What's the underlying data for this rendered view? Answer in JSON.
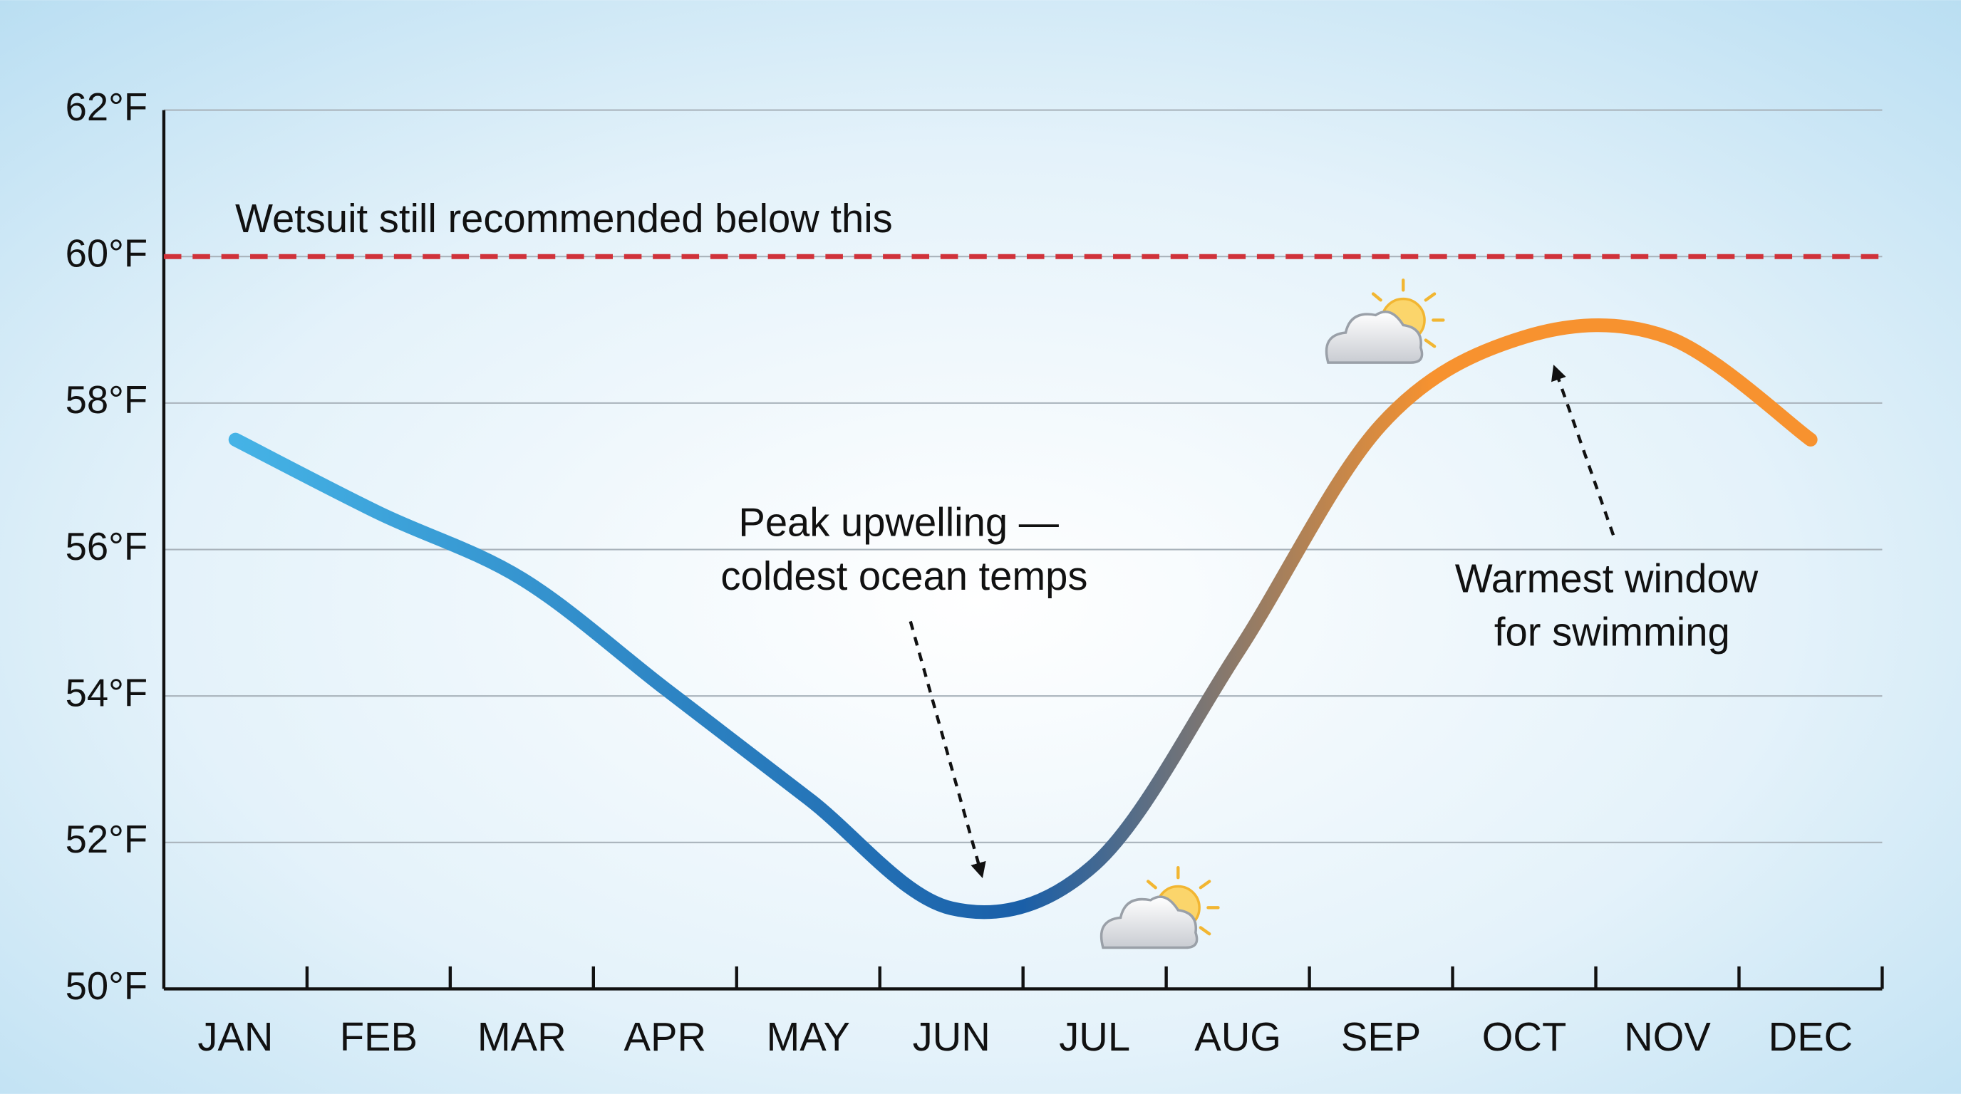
{
  "chart_data": {
    "type": "line",
    "categories": [
      "JAN",
      "FEB",
      "MAR",
      "APR",
      "MAY",
      "JUN",
      "JUL",
      "AUG",
      "SEP",
      "OCT",
      "NOV",
      "DEC"
    ],
    "series": [
      {
        "values": [
          57.5,
          56.5,
          55.6,
          54.1,
          52.6,
          51.1,
          51.7,
          54.6,
          57.7,
          58.9,
          58.9,
          57.5
        ],
        "colors": [
          "#45b3e6",
          "#1a5fa8",
          "#f7922f"
        ]
      }
    ],
    "ylim": [
      50,
      62
    ],
    "yticks": [
      {
        "value": 50,
        "label": "50°F"
      },
      {
        "value": 52,
        "label": "52°F"
      },
      {
        "value": 54,
        "label": "54°F"
      },
      {
        "value": 56,
        "label": "56°F"
      },
      {
        "value": 58,
        "label": "58°F"
      },
      {
        "value": 60,
        "label": "60°F"
      },
      {
        "value": 62,
        "label": "62°F"
      }
    ],
    "grid": true,
    "threshold": {
      "value": 60,
      "label": "Wetsuit still recommended below this",
      "color": "#d0323a"
    },
    "annotations": [
      {
        "lines": [
          "Peak upwelling —",
          "coldest ocean temps"
        ]
      },
      {
        "lines": [
          "Warmest window",
          "for swimming"
        ]
      }
    ]
  }
}
